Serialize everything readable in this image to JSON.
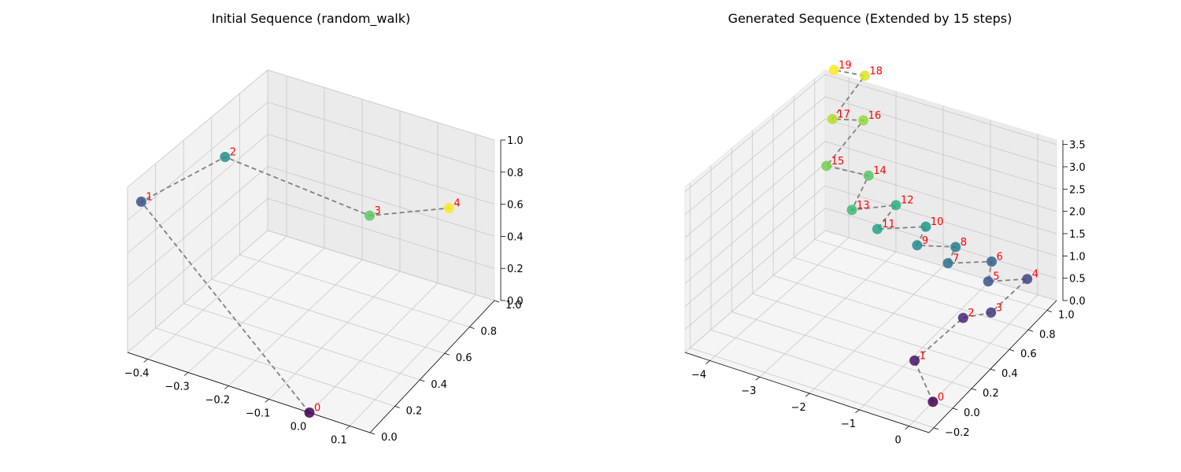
{
  "chart_data": [
    {
      "type": "scatter3d",
      "title": "Initial Sequence (random_walk)",
      "xlim": [
        -0.45,
        0.15
      ],
      "ylim": [
        0,
        1
      ],
      "zlim": [
        0,
        1
      ],
      "xticks": [
        -0.4,
        -0.3,
        -0.2,
        -0.1,
        0.0,
        0.1
      ],
      "xtick_labels": [
        "−0.4",
        "−0.3",
        "−0.2",
        "−0.1",
        "0.0",
        "0.1"
      ],
      "yticks": [
        0.0,
        0.2,
        0.4,
        0.6,
        0.8,
        1.0
      ],
      "ytick_labels": [
        "0.0",
        "0.2",
        "0.4",
        "0.6",
        "0.8",
        "1.0"
      ],
      "zticks": [
        0.0,
        0.2,
        0.4,
        0.6,
        0.8,
        1.0
      ],
      "ztick_labels": [
        "0.0",
        "0.2",
        "0.4",
        "0.6",
        "0.8",
        "1.0"
      ],
      "points": [
        {
          "label": "0",
          "x": 0.0,
          "y": 0.0,
          "z": 0.0
        },
        {
          "label": "1",
          "x": -0.43,
          "y": 0.04,
          "z": 0.9
        },
        {
          "label": "2",
          "x": -0.38,
          "y": 0.5,
          "z": 0.88
        },
        {
          "label": "3",
          "x": -0.06,
          "y": 0.65,
          "z": 0.65
        },
        {
          "label": "4",
          "x": 0.04,
          "y": 0.97,
          "z": 0.52
        }
      ],
      "colormap": "viridis",
      "path_style": "gray dashed",
      "grid": true
    },
    {
      "type": "scatter3d",
      "title": "Generated Sequence (Extended by 15 steps)",
      "xlim": [
        -4.5,
        0.4
      ],
      "ylim": [
        -0.25,
        1.1
      ],
      "zlim": [
        0,
        3.6
      ],
      "xticks": [
        -4,
        -3,
        -2,
        -1,
        0
      ],
      "xtick_labels": [
        "−4",
        "−3",
        "−2",
        "−1",
        "0"
      ],
      "yticks": [
        -0.2,
        0.0,
        0.2,
        0.4,
        0.6,
        0.8,
        1.0
      ],
      "ytick_labels": [
        "−0.2",
        "0.0",
        "0.2",
        "0.4",
        "0.6",
        "0.8",
        "1.0"
      ],
      "zticks": [
        0.0,
        0.5,
        1.0,
        1.5,
        2.0,
        2.5,
        3.0,
        3.5
      ],
      "ztick_labels": [
        "0.0",
        "0.5",
        "1.0",
        "1.5",
        "2.0",
        "2.5",
        "3.0",
        "3.5"
      ],
      "points": [
        {
          "label": "0",
          "x": 0.0,
          "y": 0.0,
          "z": 0.0
        },
        {
          "label": "1",
          "x": -0.45,
          "y": 0.04,
          "z": 0.66
        },
        {
          "label": "2",
          "x": -0.36,
          "y": 0.5,
          "z": 0.66
        },
        {
          "label": "3",
          "x": -0.06,
          "y": 0.64,
          "z": 0.58
        },
        {
          "label": "4",
          "x": 0.02,
          "y": 0.98,
          "z": 0.62
        },
        {
          "label": "5",
          "x": -0.78,
          "y": 0.97,
          "z": 0.33
        },
        {
          "label": "6",
          "x": -0.75,
          "y": 0.99,
          "z": 0.74
        },
        {
          "label": "7",
          "x": -1.63,
          "y": 0.97,
          "z": 0.46
        },
        {
          "label": "8",
          "x": -1.51,
          "y": 0.99,
          "z": 0.82
        },
        {
          "label": "9",
          "x": -2.34,
          "y": 1.0,
          "z": 0.57
        },
        {
          "label": "10",
          "x": -2.2,
          "y": 1.02,
          "z": 0.99
        },
        {
          "label": "11",
          "x": -3.18,
          "y": 1.0,
          "z": 0.66
        },
        {
          "label": "12",
          "x": -2.83,
          "y": 1.02,
          "z": 1.27
        },
        {
          "label": "13",
          "x": -3.76,
          "y": 1.02,
          "z": 0.86
        },
        {
          "label": "14",
          "x": -3.45,
          "y": 1.04,
          "z": 1.69
        },
        {
          "label": "15",
          "x": -4.34,
          "y": 1.04,
          "z": 1.62
        },
        {
          "label": "16",
          "x": -3.69,
          "y": 1.1,
          "z": 2.73
        },
        {
          "label": "17",
          "x": -4.28,
          "y": 1.07,
          "z": 2.63
        },
        {
          "label": "18",
          "x": -3.66,
          "y": 1.1,
          "z": 3.74
        },
        {
          "label": "19",
          "x": -4.25,
          "y": 1.07,
          "z": 3.74
        }
      ],
      "colormap": "viridis",
      "path_style": "gray dashed",
      "grid": true
    }
  ]
}
